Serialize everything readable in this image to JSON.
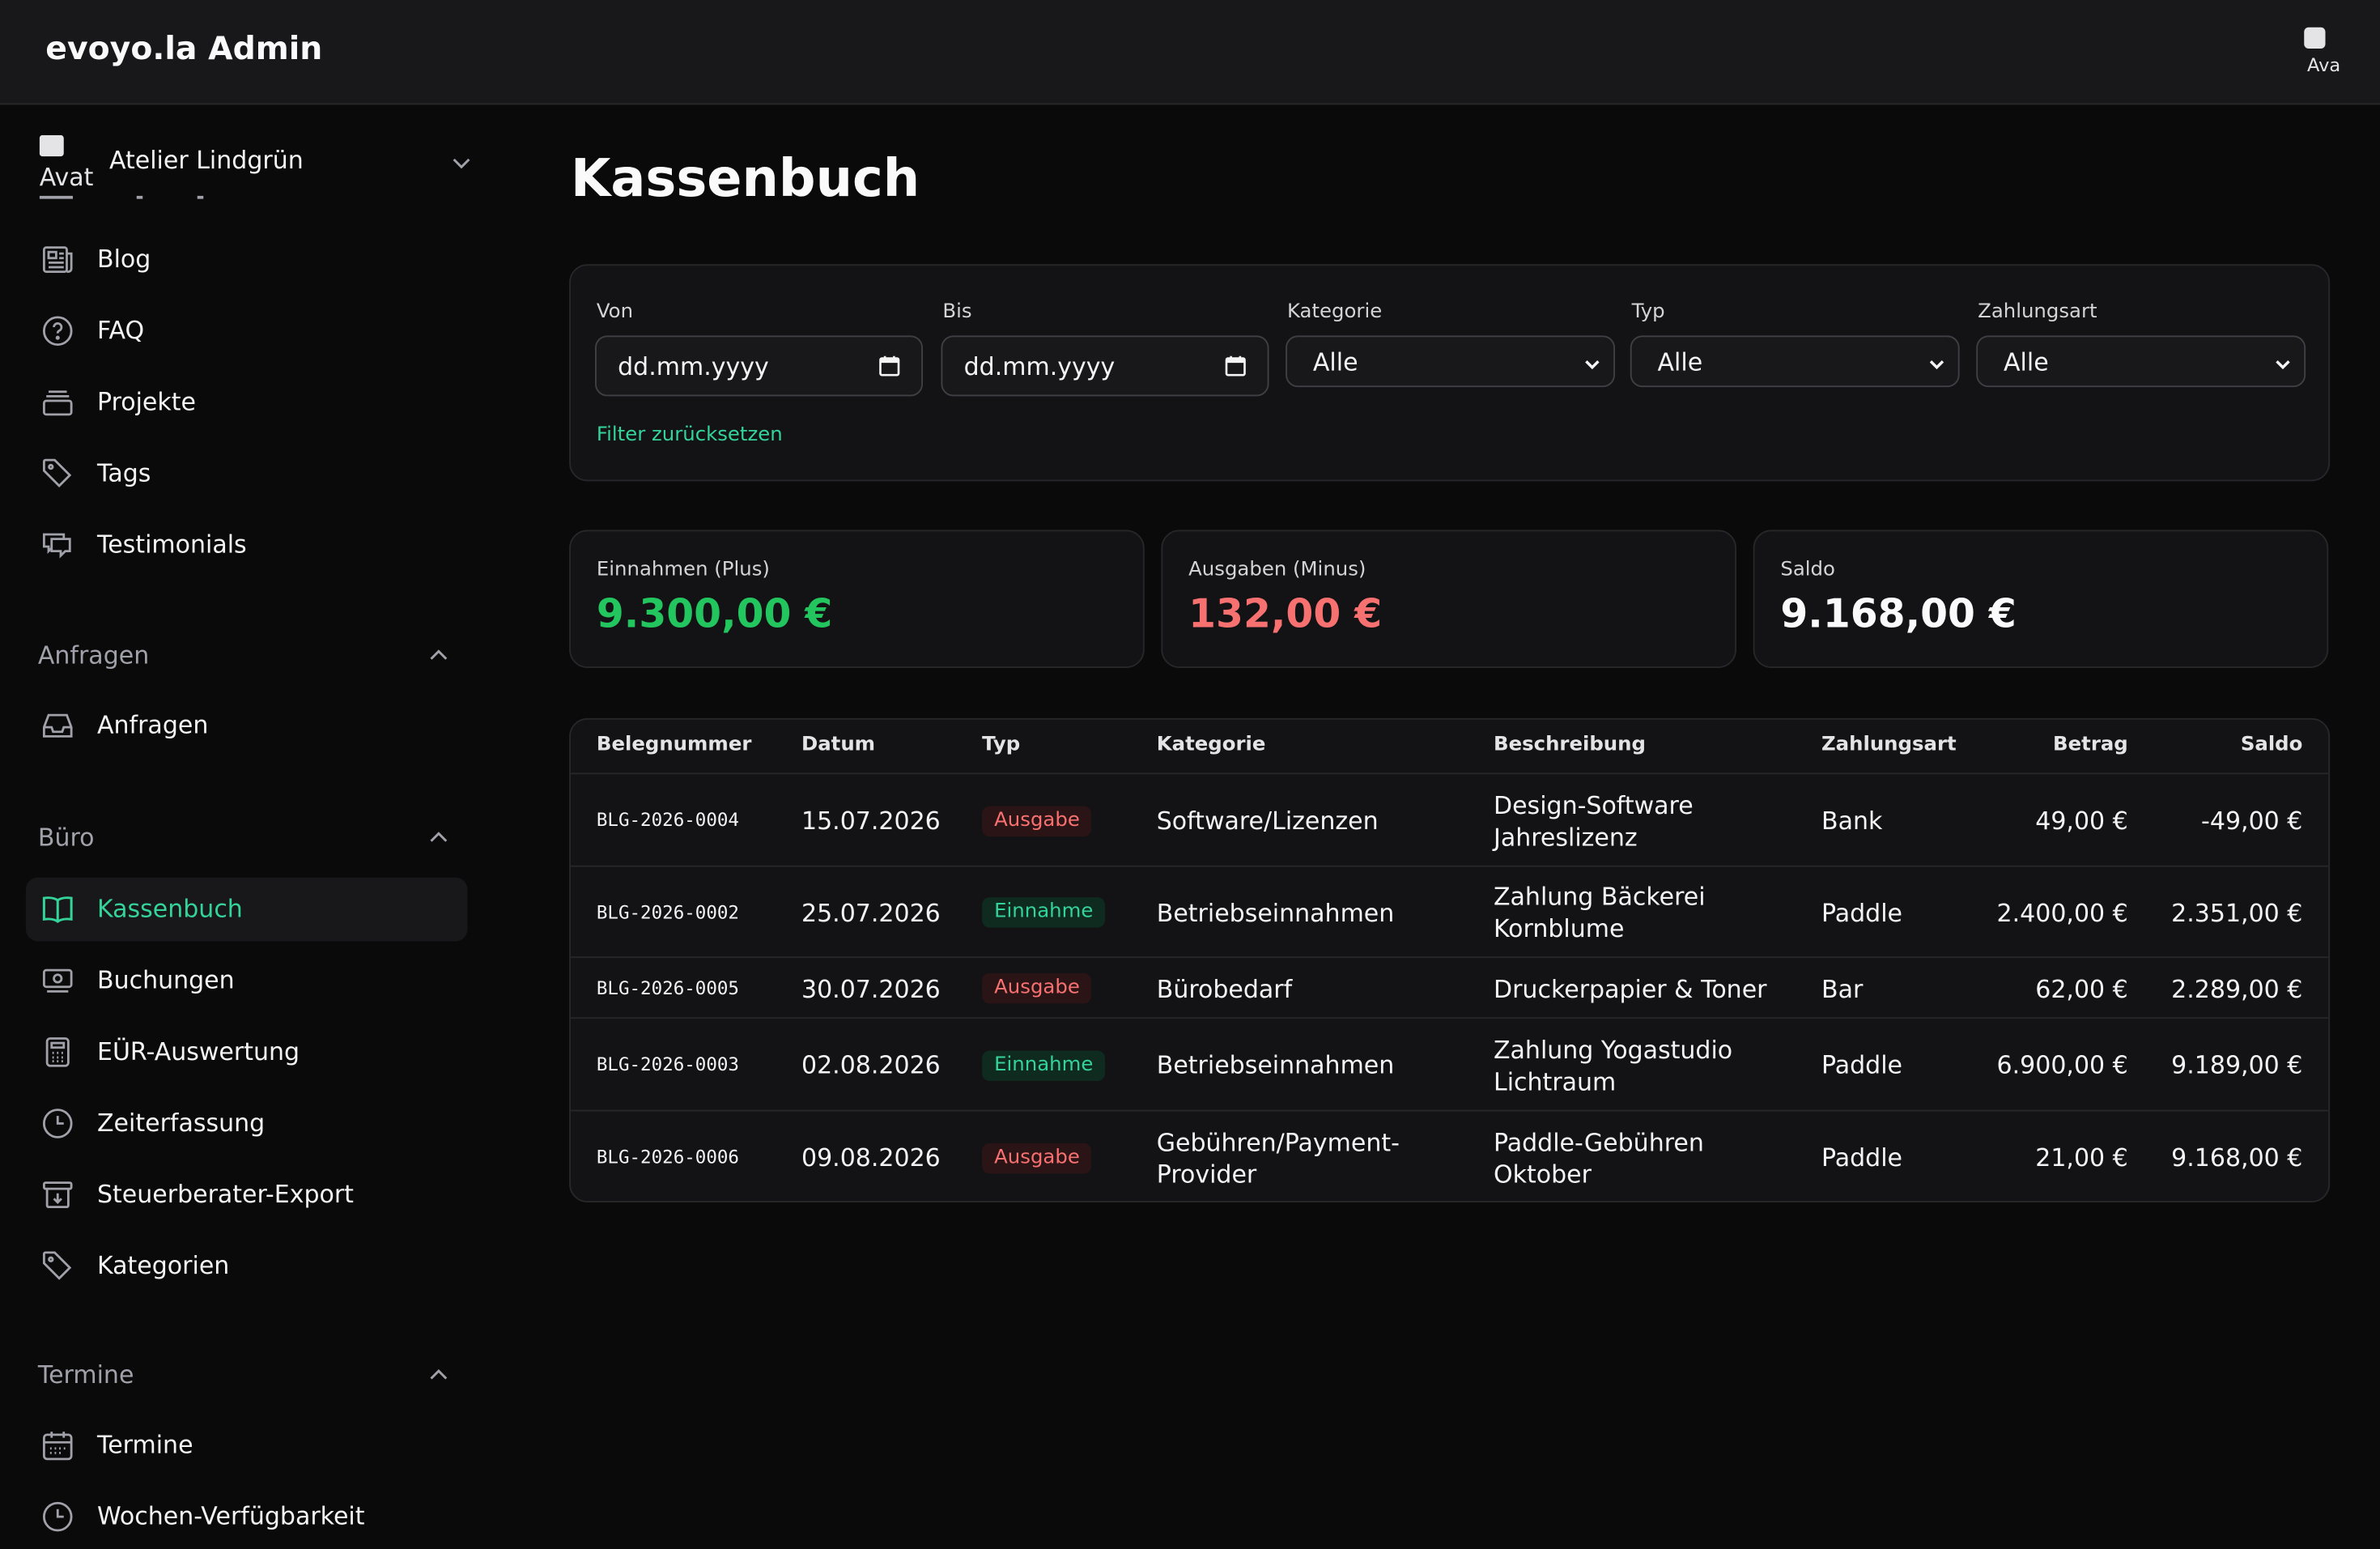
{
  "app": {
    "title": "evoyo.la Admin",
    "avatar_alt": "Ava"
  },
  "sidebar": {
    "team": {
      "avatar_alt": "Avat",
      "name": "Atelier Lindgrün"
    },
    "items_top": [
      {
        "label": "Blog",
        "icon": "newspaper-icon"
      },
      {
        "label": "FAQ",
        "icon": "question-circle-icon"
      },
      {
        "label": "Projekte",
        "icon": "folder-stack-icon"
      },
      {
        "label": "Tags",
        "icon": "tag-icon"
      },
      {
        "label": "Testimonials",
        "icon": "chat-bubbles-icon"
      }
    ],
    "groups": [
      {
        "label": "Anfragen",
        "items": [
          {
            "label": "Anfragen",
            "icon": "inbox-icon"
          }
        ]
      },
      {
        "label": "Büro",
        "items": [
          {
            "label": "Kassenbuch",
            "icon": "book-icon",
            "active": true
          },
          {
            "label": "Buchungen",
            "icon": "banknote-icon"
          },
          {
            "label": "EÜR-Auswertung",
            "icon": "calculator-icon"
          },
          {
            "label": "Zeiterfassung",
            "icon": "clock-icon"
          },
          {
            "label": "Steuerberater-Export",
            "icon": "archive-download-icon"
          },
          {
            "label": "Kategorien",
            "icon": "tag-icon"
          }
        ]
      },
      {
        "label": "Termine",
        "items": [
          {
            "label": "Termine",
            "icon": "calendar-icon"
          },
          {
            "label": "Wochen-Verfügbarkeit",
            "icon": "clock-icon"
          }
        ]
      }
    ]
  },
  "main": {
    "title": "Kassenbuch",
    "filters": {
      "von": {
        "label": "Von",
        "placeholder": "dd.mm.yyyy"
      },
      "bis": {
        "label": "Bis",
        "placeholder": "dd.mm.yyyy"
      },
      "kategorie": {
        "label": "Kategorie",
        "value": "Alle"
      },
      "typ": {
        "label": "Typ",
        "value": "Alle"
      },
      "zahlungsart": {
        "label": "Zahlungsart",
        "value": "Alle"
      },
      "reset_label": "Filter zurücksetzen"
    },
    "stats": [
      {
        "label": "Einnahmen (Plus)",
        "value": "9.300,00 €",
        "color": "#22c55e"
      },
      {
        "label": "Ausgaben (Minus)",
        "value": "132,00 €",
        "color": "#f87171"
      },
      {
        "label": "Saldo",
        "value": "9.168,00 €",
        "color": "#fafafa"
      }
    ],
    "table": {
      "columns": [
        "Belegnummer",
        "Datum",
        "Typ",
        "Kategorie",
        "Beschreibung",
        "Zahlungsart",
        "Betrag",
        "Saldo"
      ],
      "rows": [
        {
          "beleg": "BLG-2026-0004",
          "datum": "15.07.2026",
          "typ": "Ausgabe",
          "kategorie": [
            "Software/Lizenzen"
          ],
          "beschreibung": [
            "Design-Software",
            "Jahreslizenz"
          ],
          "zahlungsart": "Bank",
          "betrag": "49,00 €",
          "saldo": "-49,00 €"
        },
        {
          "beleg": "BLG-2026-0002",
          "datum": "25.07.2026",
          "typ": "Einnahme",
          "kategorie": [
            "Betriebseinnahmen"
          ],
          "beschreibung": [
            "Zahlung Bäckerei",
            "Kornblume"
          ],
          "zahlungsart": "Paddle",
          "betrag": "2.400,00 €",
          "saldo": "2.351,00 €"
        },
        {
          "beleg": "BLG-2026-0005",
          "datum": "30.07.2026",
          "typ": "Ausgabe",
          "kategorie": [
            "Bürobedarf"
          ],
          "beschreibung": [
            "Druckerpapier & Toner"
          ],
          "zahlungsart": "Bar",
          "betrag": "62,00 €",
          "saldo": "2.289,00 €"
        },
        {
          "beleg": "BLG-2026-0003",
          "datum": "02.08.2026",
          "typ": "Einnahme",
          "kategorie": [
            "Betriebseinnahmen"
          ],
          "beschreibung": [
            "Zahlung Yogastudio",
            "Lichtraum"
          ],
          "zahlungsart": "Paddle",
          "betrag": "6.900,00 €",
          "saldo": "9.189,00 €"
        },
        {
          "beleg": "BLG-2026-0006",
          "datum": "09.08.2026",
          "typ": "Ausgabe",
          "kategorie": [
            "Gebühren/Payment-",
            "Provider"
          ],
          "beschreibung": [
            "Paddle-Gebühren",
            "Oktober"
          ],
          "zahlungsart": "Paddle",
          "betrag": "21,00 €",
          "saldo": "9.168,00 €"
        }
      ]
    }
  }
}
